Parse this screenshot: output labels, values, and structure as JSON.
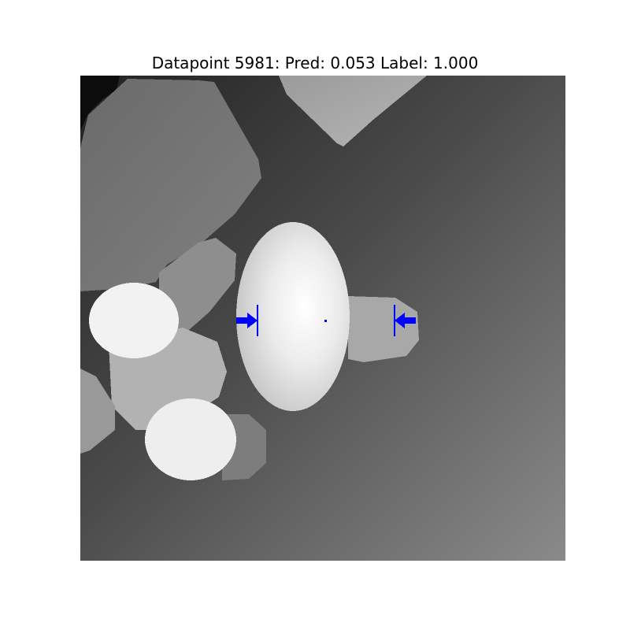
{
  "figure": {
    "title": "Datapoint 5981: Pred: 0.053 Label: 1.000",
    "datapoint": 5981,
    "prediction": 0.053,
    "label": 1.0
  },
  "image": {
    "kind": "grayscale depth image",
    "grasp_marker_color": "#0000ff"
  }
}
